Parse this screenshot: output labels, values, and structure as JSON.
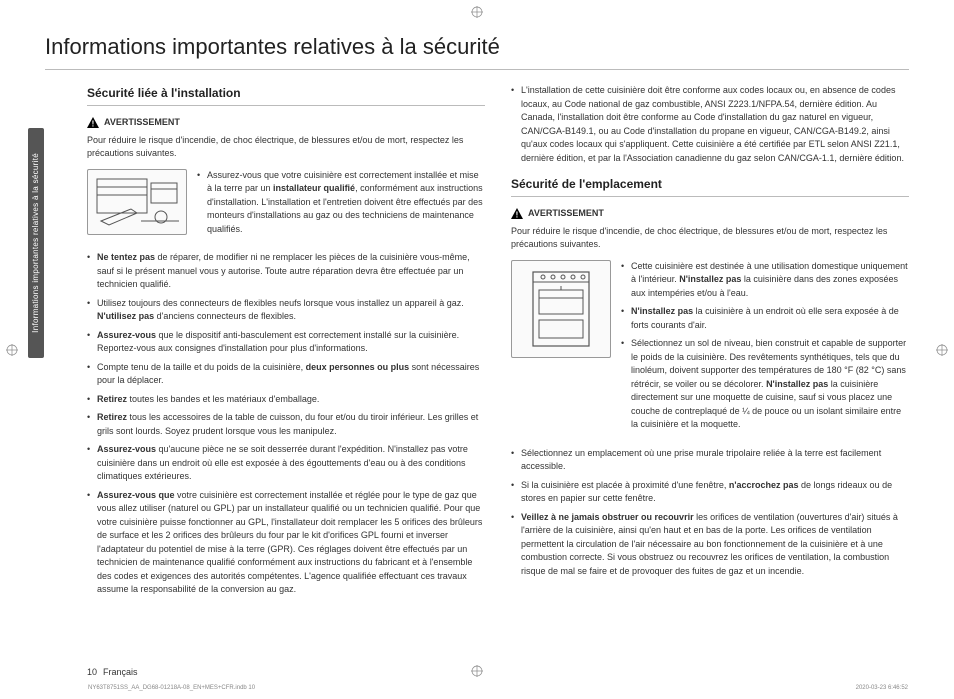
{
  "title": "Informations importantes relatives à la sécurité",
  "sideTab": "Informations importantes relatives à la sécurité",
  "col1": {
    "heading": "Sécurité liée à l'installation",
    "warnLabel": "AVERTISSEMENT",
    "intro": "Pour réduire le risque d'incendie, de choc électrique, de blessures et/ou de mort, respectez les précautions suivantes.",
    "besideImg1a": "Assurez-vous que votre cuisinière est correctement installée et mise à la terre par un ",
    "besideImg1b": "installateur qualifié",
    "besideImg1c": ", conformément aux instructions d'installation. L'installation et l'entretien doivent être effectués par des monteurs d'installations au gaz ou des techniciens de maintenance qualifiés.",
    "bullets": [
      {
        "pre": "",
        "bold": "Ne tentez pas",
        "post": " de réparer, de modifier ni ne remplacer les pièces de la cuisinière vous-même, sauf si le présent manuel vous y autorise. Toute autre réparation devra être effectuée par un technicien qualifié."
      },
      {
        "pre": "Utilisez toujours des connecteurs de flexibles neufs lorsque vous installez un appareil à gaz. ",
        "bold": "N'utilisez pas",
        "post": " d'anciens connecteurs de flexibles."
      },
      {
        "pre": "",
        "bold": "Assurez-vous",
        "post": " que le dispositif anti-basculement est correctement installé sur la cuisinière. Reportez-vous aux consignes d'installation pour plus d'informations."
      },
      {
        "pre": "Compte tenu de la taille et du poids de la cuisinière, ",
        "bold": "deux personnes ou plus",
        "post": " sont nécessaires pour la déplacer."
      },
      {
        "pre": "",
        "bold": "Retirez",
        "post": " toutes les bandes et les matériaux d'emballage."
      },
      {
        "pre": "",
        "bold": "Retirez",
        "post": " tous les accessoires de la table de cuisson, du four et/ou du tiroir inférieur. Les grilles et grils sont lourds. Soyez prudent lorsque vous les manipulez."
      },
      {
        "pre": "",
        "bold": "Assurez-vous",
        "post": " qu'aucune pièce ne se soit desserrée durant l'expédition. N'installez pas votre cuisinière dans un endroit où elle est exposée à des égouttements d'eau ou à des conditions climatiques extérieures."
      },
      {
        "pre": "",
        "bold": "Assurez-vous que",
        "post": " votre cuisinière est correctement installée et réglée pour le type de gaz que vous allez utiliser (naturel ou GPL) par un installateur qualifié ou un technicien qualifié. Pour que votre cuisinière puisse fonctionner au GPL, l'installateur doit remplacer les 5 orifices des brûleurs de surface et les 2 orifices des brûleurs du four par le kit d'orifices GPL fourni et inverser l'adaptateur du potentiel de mise à la terre (GPR). Ces réglages doivent être effectués par un technicien de maintenance qualifié conformément aux instructions du fabricant et à l'ensemble des codes et exigences des autorités compétentes. L'agence qualifiée effectuant ces travaux assume la responsabilité de la conversion au gaz."
      }
    ]
  },
  "col2": {
    "topBullet": "L'installation de cette cuisinière doit être conforme aux codes locaux ou, en absence de codes locaux, au Code national de gaz combustible, ANSI Z223.1/NFPA.54, dernière édition. Au Canada, l'installation doit être conforme au Code d'installation du gaz naturel en vigueur, CAN/CGA-B149.1, ou au Code d'installation du propane en vigueur, CAN/CGA-B149.2, ainsi qu'aux codes locaux qui s'appliquent. Cette cuisinière a été certifiée par ETL selon ANSI Z21.1, dernière édition, et par la l'Association canadienne du gaz selon CAN/CGA-1.1, dernière édition.",
    "heading": "Sécurité de l'emplacement",
    "warnLabel": "AVERTISSEMENT",
    "intro": "Pour réduire le risque d'incendie, de choc électrique, de blessures et/ou de mort, respectez les précautions suivantes.",
    "besideBullets": [
      {
        "pre": "Cette cuisinière est destinée à une utilisation domestique uniquement à l'intérieur. ",
        "bold": "N'installez pas",
        "post": " la cuisinière dans des zones exposées aux intempéries et/ou à l'eau."
      },
      {
        "pre": "",
        "bold": "N'installez pas",
        "post": " la cuisinière à un endroit où elle sera exposée à de forts courants d'air."
      },
      {
        "pre": "Sélectionnez un sol de niveau, bien construit et capable de supporter le poids de la cuisinière. Des revêtements synthétiques, tels que du linoléum, doivent supporter des températures de 180 °F (82 °C) sans rétrécir, se voiler ou se décolorer. ",
        "bold": "N'installez pas",
        "post": " la cuisinière directement sur une moquette de cuisine, sauf si vous placez une couche de contreplaqué de ¼ de pouce ou un isolant similaire entre la cuisinière et la moquette."
      }
    ],
    "bullets": [
      {
        "pre": "Sélectionnez un emplacement où une prise murale tripolaire reliée à la terre est facilement accessible.",
        "bold": "",
        "post": ""
      },
      {
        "pre": "Si la cuisinière est placée à proximité d'une fenêtre, ",
        "bold": "n'accrochez pas",
        "post": " de longs rideaux ou de stores en papier sur cette fenêtre."
      },
      {
        "pre": "",
        "bold": "Veillez à ne jamais obstruer ou recouvrir",
        "post": " les orifices de ventilation (ouvertures d'air) situés à l'arrière de la cuisinière, ainsi qu'en haut et en bas de la porte. Les orifices de ventilation permettent la circulation de l'air nécessaire au bon fonctionnement de la cuisinière et à une combustion correcte. Si vous obstruez ou recouvrez les orifices de ventilation, la combustion risque de mal se faire et de provoquer des fuites de gaz et un incendie."
      }
    ]
  },
  "footer": {
    "pageNo": "10",
    "lang": "Français",
    "printFile": "NY63T8751SS_AA_DG68-01218A-08_EN+MES+CFR.indb   10",
    "printTime": "2020-03-23   6:46:52"
  }
}
